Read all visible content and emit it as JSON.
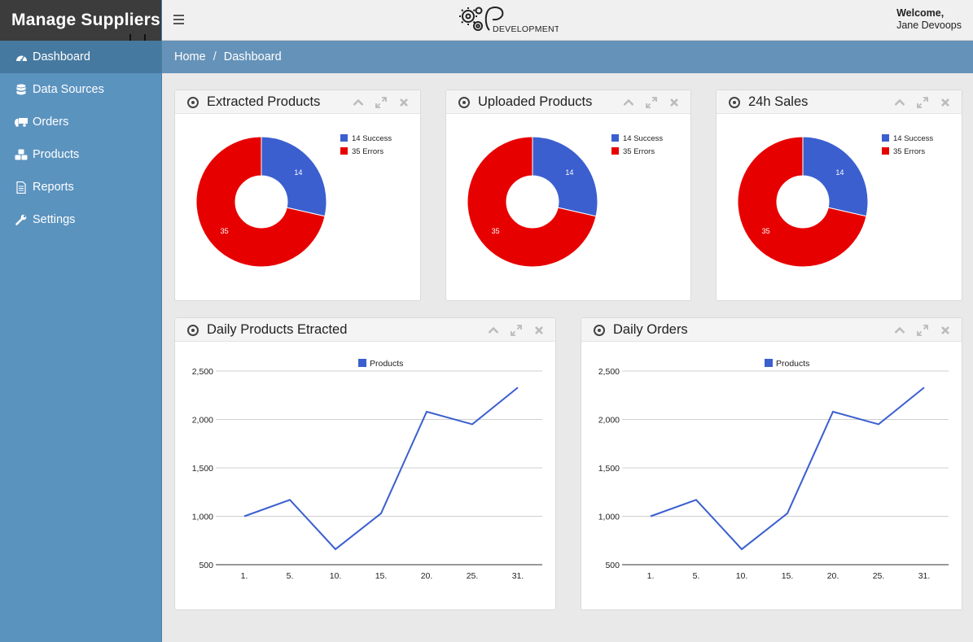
{
  "brand": {
    "title": "Manage Suppliers"
  },
  "logo": {
    "text": "DEVELOPMENT"
  },
  "user": {
    "welcome": "Welcome,",
    "name": "Jane Devoops"
  },
  "sidebar": {
    "items": [
      {
        "label": "Dashboard",
        "icon": "dashboard-icon",
        "active": true
      },
      {
        "label": "Data Sources",
        "icon": "database-icon"
      },
      {
        "label": "Orders",
        "icon": "truck-icon"
      },
      {
        "label": "Products",
        "icon": "cubes-icon"
      },
      {
        "label": "Reports",
        "icon": "document-icon"
      },
      {
        "label": "Settings",
        "icon": "wrench-icon"
      }
    ]
  },
  "breadcrumb": {
    "home": "Home",
    "separator": "/",
    "current": "Dashboard"
  },
  "colors": {
    "success": "#3b5fcf",
    "errors": "#e70000",
    "line": "#3b5fcf",
    "sidebar": "#5b93bf",
    "breadcrumb": "#6592b8"
  },
  "panels": [
    {
      "title": "Extracted Products"
    },
    {
      "title": "Uploaded Products"
    },
    {
      "title": "24h Sales"
    },
    {
      "title": "Daily Products Etracted"
    },
    {
      "title": "Daily Orders"
    }
  ],
  "chart_data": [
    {
      "type": "pie",
      "donut": true,
      "legend": "top-right",
      "slices": [
        {
          "label": "14 Success",
          "value": 14
        },
        {
          "label": "35 Errors",
          "value": 35
        }
      ]
    },
    {
      "type": "pie",
      "donut": true,
      "legend": "top-right",
      "slices": [
        {
          "label": "14 Success",
          "value": 14
        },
        {
          "label": "35 Errors",
          "value": 35
        }
      ]
    },
    {
      "type": "pie",
      "donut": true,
      "legend": "top-right",
      "slices": [
        {
          "label": "14 Success",
          "value": 14
        },
        {
          "label": "35 Errors",
          "value": 35
        }
      ]
    },
    {
      "type": "line",
      "legend": "top",
      "categories": [
        "1.",
        "5.",
        "10.",
        "15.",
        "20.",
        "25.",
        "31."
      ],
      "ylim": [
        500,
        2500
      ],
      "yticks": [
        "2,500",
        "2,000",
        "1,500",
        "1,000",
        "500"
      ],
      "series": [
        {
          "name": "Products",
          "values": [
            1000,
            1170,
            660,
            1030,
            2080,
            1950,
            2330
          ]
        }
      ]
    },
    {
      "type": "line",
      "legend": "top",
      "categories": [
        "1.",
        "5.",
        "10.",
        "15.",
        "20.",
        "25.",
        "31."
      ],
      "ylim": [
        500,
        2500
      ],
      "yticks": [
        "2,500",
        "2,000",
        "1,500",
        "1,000",
        "500"
      ],
      "series": [
        {
          "name": "Products",
          "values": [
            1000,
            1170,
            660,
            1030,
            2080,
            1950,
            2330
          ]
        }
      ]
    }
  ]
}
